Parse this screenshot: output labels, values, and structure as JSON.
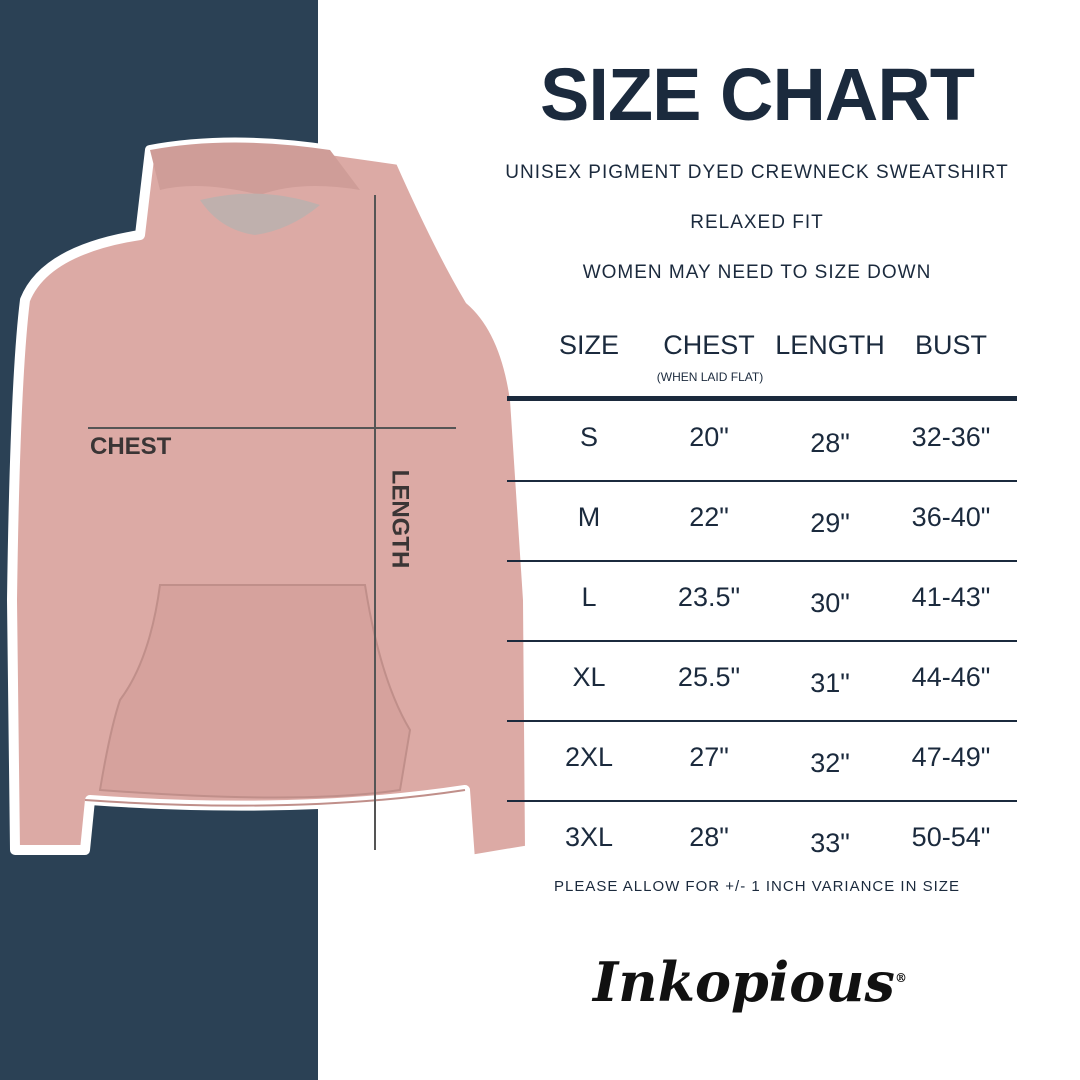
{
  "title": "SIZE CHART",
  "subtitles": [
    "UNISEX PIGMENT DYED CREWNECK SWEATSHIRT",
    "RELAXED FIT",
    "WOMEN MAY NEED TO SIZE DOWN"
  ],
  "table": {
    "headers": [
      "SIZE",
      "CHEST",
      "LENGTH",
      "BUST"
    ],
    "chest_note": "(WHEN LAID FLAT)",
    "rows": [
      [
        "S",
        "20\"",
        "28\"",
        "32-36\""
      ],
      [
        "M",
        "22\"",
        "29\"",
        "36-40\""
      ],
      [
        "L",
        "23.5\"",
        "30\"",
        "41-43\""
      ],
      [
        "XL",
        "25.5\"",
        "31\"",
        "44-46\""
      ],
      [
        "2XL",
        "27\"",
        "32\"",
        "47-49\""
      ],
      [
        "3XL",
        "28\"",
        "33\"",
        "50-54\""
      ]
    ]
  },
  "footnote": "PLEASE ALLOW FOR +/- 1 INCH VARIANCE IN SIZE",
  "diagram": {
    "chest_label": "CHEST",
    "length_label": "LENGTH"
  },
  "logo": "Inkopious",
  "colors": {
    "navy": "#2b4155",
    "text": "#1b2a3d",
    "hoodie": "#dcaaa5"
  }
}
